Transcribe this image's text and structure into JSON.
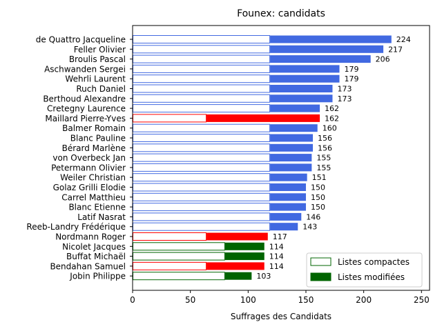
{
  "chart_data": {
    "type": "bar",
    "orientation": "horizontal",
    "title": "Founex: candidats",
    "xlabel": "Suffrages des Candidats",
    "ylabel": "",
    "xlim": [
      0,
      257
    ],
    "xticks": [
      0,
      50,
      100,
      150,
      200,
      250
    ],
    "grid": false,
    "legend_position": "lower-right",
    "legend": [
      {
        "label": "Listes compactes",
        "style": "outline",
        "color": "#006400"
      },
      {
        "label": "Listes modifiées",
        "style": "filled",
        "color": "#006400"
      }
    ],
    "colors": {
      "blue": "#4169e1",
      "red": "#ff0000",
      "green": "#006400"
    },
    "categories": [
      "de Quattro Jacqueline",
      "Feller Olivier",
      "Broulis Pascal",
      "Aschwanden Sergei",
      "Wehrli Laurent",
      "Ruch Daniel",
      "Berthoud Alexandre",
      "Cretegny Laurence",
      "Maillard Pierre-Yves",
      "Balmer Romain",
      "Blanc Pauline",
      "Bérard Marlène",
      "von Overbeck Jan",
      "Petermann Olivier",
      "Weiler Christian",
      "Golaz Grilli Elodie",
      "Carrel Matthieu",
      "Blanc Etienne",
      "Latif Nasrat",
      "Reeb-Landry Frédérique",
      "Nordmann Roger",
      "Nicolet Jacques",
      "Buffat Michaël",
      "Bendahan Samuel",
      "Jobin Philippe"
    ],
    "series": [
      {
        "name": "Listes compactes",
        "values": [
          119,
          119,
          119,
          119,
          119,
          119,
          119,
          119,
          64,
          119,
          119,
          119,
          119,
          119,
          119,
          119,
          119,
          119,
          119,
          119,
          64,
          80,
          80,
          64,
          80
        ]
      },
      {
        "name": "Listes modifiées",
        "values": [
          105,
          98,
          87,
          60,
          60,
          54,
          54,
          43,
          98,
          41,
          37,
          37,
          36,
          36,
          32,
          31,
          31,
          31,
          27,
          24,
          53,
          34,
          34,
          50,
          23
        ]
      }
    ],
    "totals": [
      224,
      217,
      206,
      179,
      179,
      173,
      173,
      162,
      162,
      160,
      156,
      156,
      155,
      155,
      151,
      150,
      150,
      150,
      146,
      143,
      117,
      114,
      114,
      114,
      103
    ],
    "bar_colors": [
      "blue",
      "blue",
      "blue",
      "blue",
      "blue",
      "blue",
      "blue",
      "blue",
      "red",
      "blue",
      "blue",
      "blue",
      "blue",
      "blue",
      "blue",
      "blue",
      "blue",
      "blue",
      "blue",
      "blue",
      "red",
      "green",
      "green",
      "red",
      "green"
    ]
  }
}
